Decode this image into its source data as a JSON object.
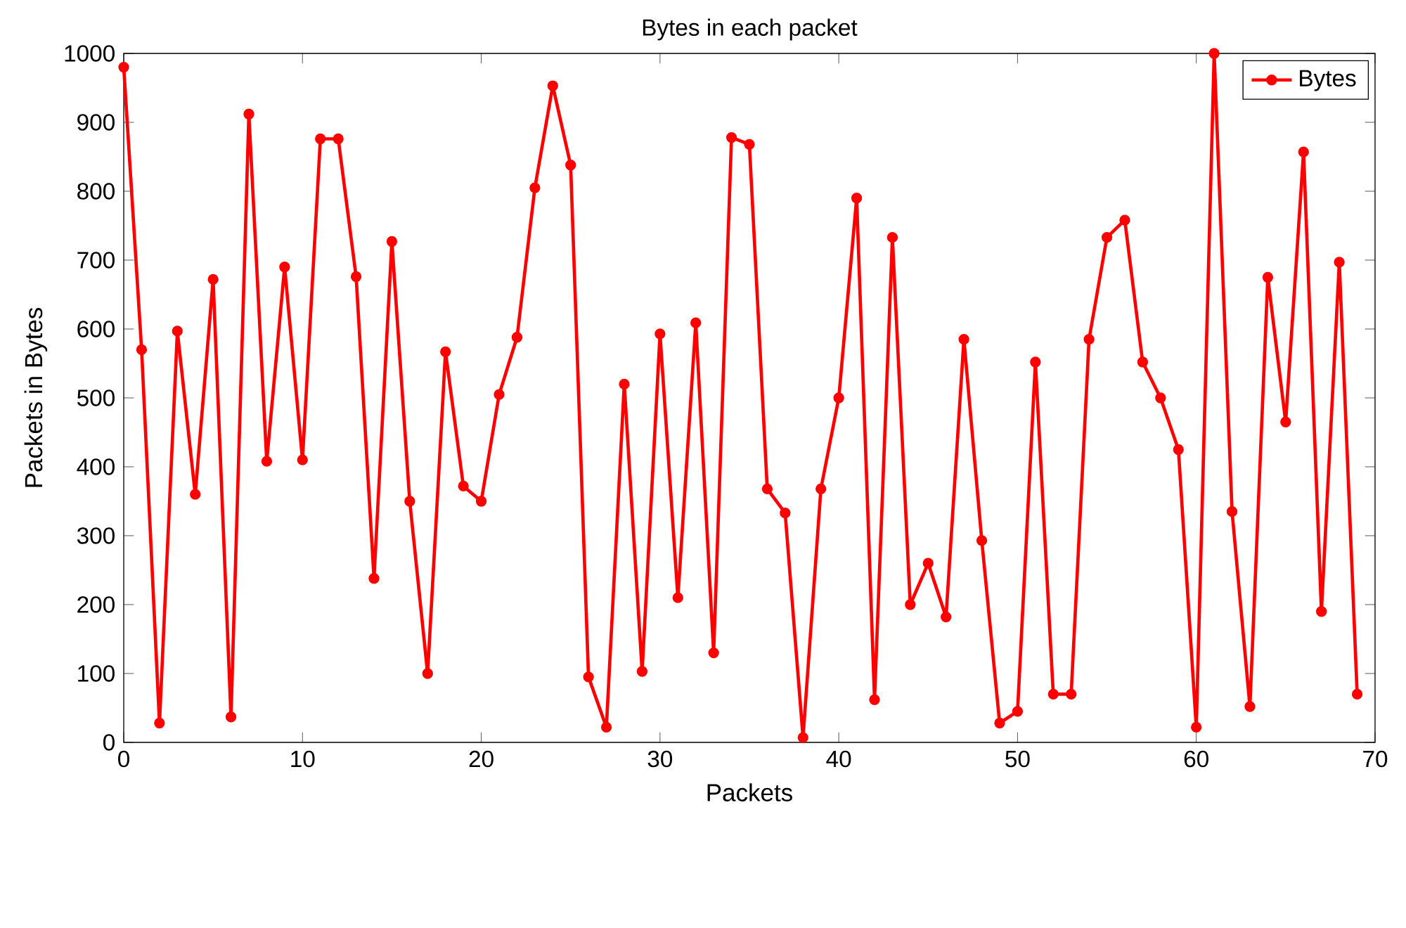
{
  "chart_data": {
    "type": "line",
    "title": "Bytes in each packet",
    "xlabel": "Packets",
    "ylabel": "Packets in Bytes",
    "x": [
      0,
      1,
      2,
      3,
      4,
      5,
      6,
      7,
      8,
      9,
      10,
      11,
      12,
      13,
      14,
      15,
      16,
      17,
      18,
      19,
      20,
      21,
      22,
      23,
      24,
      25,
      26,
      27,
      28,
      29,
      30,
      31,
      32,
      33,
      34,
      35,
      36,
      37,
      38,
      39,
      40,
      41,
      42,
      43,
      44,
      45,
      46,
      47,
      48,
      49,
      50,
      51,
      52,
      53,
      54,
      55,
      56,
      57,
      58,
      59,
      60,
      61,
      62,
      63,
      64,
      65,
      66,
      67,
      68,
      69
    ],
    "series": [
      {
        "name": "Bytes",
        "color": "#ff0000",
        "values": [
          980,
          570,
          28,
          597,
          360,
          672,
          37,
          912,
          408,
          690,
          410,
          876,
          876,
          676,
          238,
          727,
          350,
          100,
          567,
          372,
          350,
          505,
          588,
          805,
          953,
          838,
          95,
          22,
          520,
          103,
          593,
          210,
          609,
          130,
          878,
          868,
          368,
          333,
          7,
          368,
          500,
          790,
          62,
          733,
          200,
          260,
          182,
          585,
          293,
          28,
          45,
          552,
          70,
          70,
          585,
          733,
          758,
          552,
          500,
          425,
          22,
          1000,
          335,
          52,
          675,
          465,
          857,
          190,
          697,
          70
        ]
      }
    ],
    "xlim": [
      0,
      70
    ],
    "ylim": [
      0,
      1000
    ],
    "xticks": [
      0,
      10,
      20,
      30,
      40,
      50,
      60,
      70
    ],
    "yticks": [
      0,
      100,
      200,
      300,
      400,
      500,
      600,
      700,
      800,
      900,
      1000
    ],
    "grid": false,
    "legend": "top right",
    "marker": "circle",
    "line_style": "solid"
  }
}
